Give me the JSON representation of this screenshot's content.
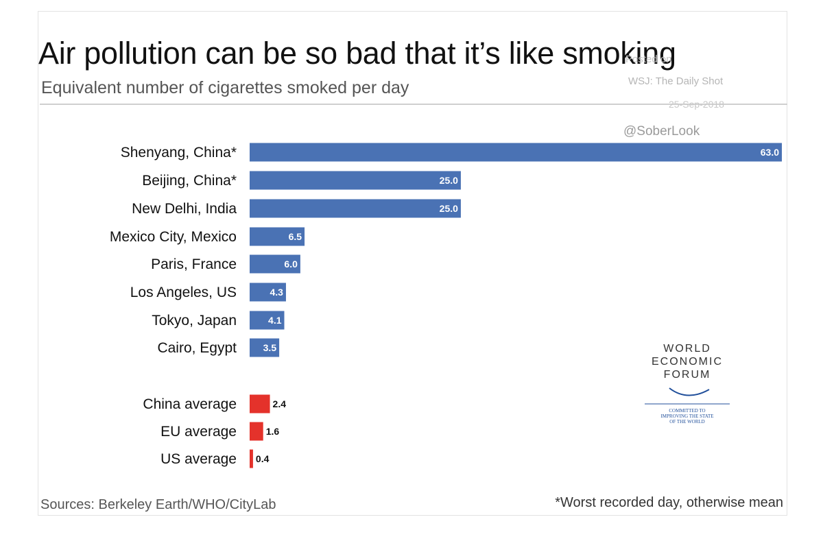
{
  "header": {
    "title": "Air pollution can be so bad that it’s like smoking",
    "subtitle": "Equivalent number of cigarettes smoked per day"
  },
  "watermark": {
    "poc": "Posted on",
    "source": "WSJ: The Daily Shot",
    "date": "25-Sep-2018",
    "handle": "@SoberLook"
  },
  "logo": {
    "line1": "WORLD",
    "line2": "ECONOMIC",
    "line3": "FORUM",
    "tagline": [
      "COMMITTED TO",
      "IMPROVING THE STATE",
      "OF THE WORLD"
    ],
    "icon": "wef-arc-icon"
  },
  "footer": {
    "sources": "Sources: Berkeley Earth/WHO/CityLab",
    "note": "*Worst recorded day, otherwise mean"
  },
  "colors": {
    "city_bar": "#4a72b4",
    "average_bar": "#e4322b",
    "logo_arc": "#1f4e9a"
  },
  "chart_data": {
    "type": "bar",
    "orientation": "horizontal",
    "title": "Air pollution can be so bad that it’s like smoking",
    "subtitle": "Equivalent number of cigarettes smoked per day",
    "xlabel": "",
    "ylabel": "",
    "xlim": [
      0,
      63
    ],
    "grid": false,
    "legend": "none",
    "categories": [
      "Shenyang, China*",
      "Beijing, China*",
      "New Delhi, India",
      "Mexico City, Mexico",
      "Paris, France",
      "Los Angeles, US",
      "Tokyo, Japan",
      "Cairo, Egypt",
      "China average",
      "EU average",
      "US average"
    ],
    "values": [
      63.0,
      25.0,
      25.0,
      6.5,
      6.0,
      4.3,
      4.1,
      3.5,
      2.4,
      1.6,
      0.4
    ],
    "value_labels": [
      "63.0",
      "25.0",
      "25.0",
      "6.5",
      "6.0",
      "4.3",
      "4.1",
      "3.5",
      "2.4",
      "1.6",
      "0.4"
    ],
    "groups": [
      "city",
      "city",
      "city",
      "city",
      "city",
      "city",
      "city",
      "city",
      "average",
      "average",
      "average"
    ]
  }
}
